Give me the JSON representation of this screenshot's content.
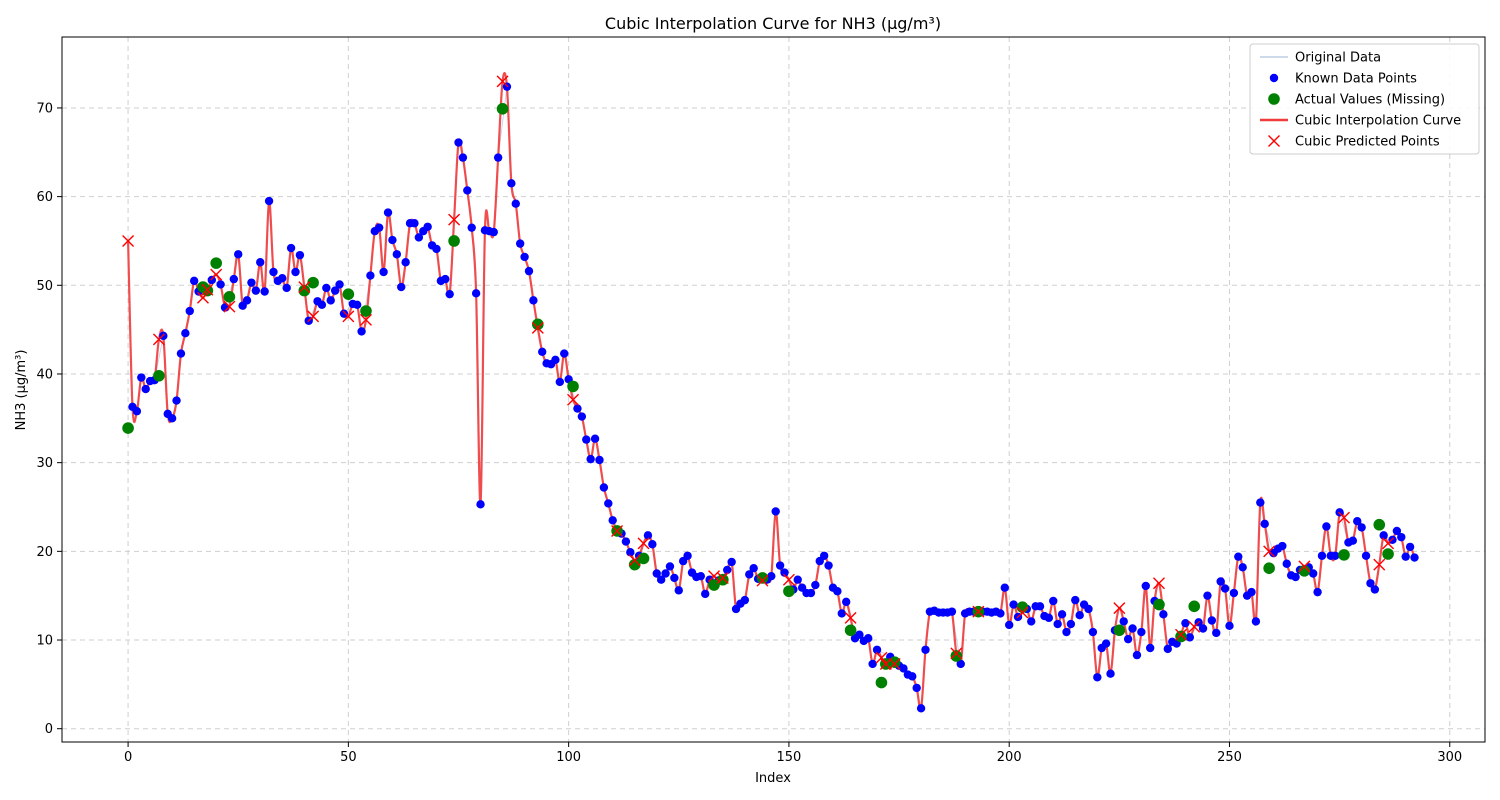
{
  "chart_data": {
    "type": "line",
    "title": "Cubic Interpolation Curve for NH3 (µg/m³)",
    "xlabel": "Index",
    "ylabel": "NH3 (µg/m³)",
    "xlim": [
      -15,
      308
    ],
    "ylim": [
      -1.5,
      78
    ],
    "xticks": [
      0,
      50,
      100,
      150,
      200,
      250,
      300
    ],
    "yticks": [
      0,
      10,
      20,
      30,
      40,
      50,
      60,
      70
    ],
    "grid": true,
    "legend_position": "top-right",
    "legend": [
      {
        "label": "Original Data",
        "kind": "line",
        "color": "#b0c4de"
      },
      {
        "label": "Known Data Points",
        "kind": "dot",
        "color": "#0000ff"
      },
      {
        "label": "Actual Values (Missing)",
        "kind": "bigdot",
        "color": "#008000"
      },
      {
        "label": "Cubic Interpolation Curve",
        "kind": "line",
        "color": "#f03c3c"
      },
      {
        "label": "Cubic Predicted Points",
        "kind": "cross",
        "color": "#ff0000"
      }
    ],
    "series_values": [
      55.0,
      36.3,
      35.8,
      39.6,
      38.3,
      39.2,
      39.3,
      43.9,
      44.3,
      35.5,
      35.0,
      37.0,
      42.3,
      44.6,
      47.1,
      50.5,
      49.3,
      48.6,
      49.5,
      50.6,
      51.2,
      50.1,
      47.5,
      47.6,
      50.7,
      53.5,
      47.7,
      48.3,
      50.3,
      49.4,
      52.6,
      49.3,
      59.5,
      51.5,
      50.5,
      50.8,
      49.7,
      54.2,
      51.5,
      53.4,
      49.8,
      46.0,
      46.5,
      48.2,
      47.8,
      49.7,
      48.3,
      49.4,
      50.1,
      46.8,
      46.5,
      47.9,
      47.8,
      44.8,
      46.1,
      51.1,
      56.1,
      56.5,
      51.5,
      58.2,
      55.1,
      53.5,
      49.8,
      52.6,
      57.0,
      57.0,
      55.4,
      56.1,
      56.6,
      54.5,
      54.1,
      50.5,
      50.7,
      49.0,
      57.4,
      66.1,
      64.4,
      60.7,
      56.5,
      49.1,
      25.3,
      56.2,
      56.1,
      56.0,
      64.4,
      73.0,
      72.4,
      61.5,
      59.2,
      54.7,
      53.2,
      51.6,
      48.3,
      45.2,
      42.5,
      41.2,
      41.1,
      41.6,
      39.1,
      42.3,
      39.4,
      37.1,
      36.1,
      35.2,
      32.6,
      30.4,
      32.7,
      30.3,
      27.2,
      25.4,
      23.5,
      22.3,
      22.0,
      21.1,
      19.9,
      19.0,
      19.5,
      20.9,
      21.8,
      20.8,
      17.5,
      16.8,
      17.5,
      18.3,
      17.0,
      15.6,
      18.9,
      19.5,
      17.6,
      17.1,
      17.2,
      15.2,
      16.8,
      17.2,
      16.7,
      17.0,
      17.9,
      18.8,
      13.5,
      14.1,
      14.5,
      17.4,
      18.1,
      16.9,
      16.7,
      16.8,
      17.2,
      24.5,
      18.4,
      17.6,
      16.8,
      15.7,
      16.8,
      15.9,
      15.3,
      15.3,
      16.2,
      18.9,
      19.5,
      18.4,
      15.9,
      15.5,
      13.0,
      14.3,
      12.5,
      10.2,
      10.6,
      9.9,
      10.2,
      7.3,
      8.9,
      8.0,
      7.3,
      8.1,
      7.3,
      7.1,
      6.8,
      6.1,
      5.9,
      4.6,
      2.3,
      8.9,
      13.2,
      13.3,
      13.1,
      13.1,
      13.1,
      13.2,
      8.5,
      7.3,
      13.0,
      13.2,
      13.2,
      13.2,
      13.2,
      13.2,
      13.1,
      13.2,
      13.0,
      15.9,
      11.7,
      14.0,
      12.6,
      13.1,
      13.5,
      12.1,
      13.8,
      13.8,
      12.7,
      12.5,
      14.4,
      11.8,
      12.9,
      10.9,
      11.8,
      14.5,
      12.8,
      14.0,
      13.5,
      10.9,
      5.8,
      9.1,
      9.6,
      6.2,
      11.1,
      13.6,
      12.1,
      10.1,
      11.3,
      8.3,
      10.9,
      16.1,
      9.1,
      14.4,
      16.4,
      12.9,
      9.0,
      9.8,
      9.6,
      10.6,
      11.9,
      10.3,
      11.5,
      12.0,
      11.3,
      15.0,
      12.2,
      10.8,
      16.6,
      15.8,
      11.6,
      15.3,
      19.4,
      18.2,
      15.0,
      15.4,
      12.1,
      25.5,
      23.1,
      20.0,
      19.8,
      20.3,
      20.6,
      18.6,
      17.3,
      17.1,
      17.9,
      18.3,
      18.2,
      17.5,
      15.4,
      19.5,
      22.8,
      19.5,
      19.5,
      24.4,
      23.8,
      21.0,
      21.2,
      23.4,
      22.7,
      19.5,
      16.4,
      15.7,
      18.5,
      21.8,
      20.9,
      21.3,
      22.3,
      21.6,
      19.4,
      20.5,
      19.3
    ],
    "missing_indices": [
      0,
      7,
      17,
      18,
      20,
      23,
      40,
      42,
      50,
      54,
      74,
      85,
      93,
      101,
      111,
      115,
      117,
      133,
      135,
      144,
      150,
      164,
      171,
      172,
      174,
      188,
      193,
      203,
      225,
      234,
      239,
      242,
      259,
      267,
      276,
      284,
      286
    ],
    "actual_values": [
      33.9,
      39.8,
      49.8,
      49.4,
      52.5,
      48.7,
      49.4,
      50.3,
      49.0,
      47.1,
      55.0,
      69.9,
      45.6,
      38.6,
      22.3,
      18.5,
      19.2,
      16.2,
      16.8,
      17.0,
      15.5,
      11.1,
      5.2,
      7.3,
      7.5,
      8.2,
      13.2,
      13.7,
      11.1,
      14.0,
      10.4,
      13.8,
      18.1,
      17.8,
      19.6,
      23.0,
      19.7
    ]
  }
}
